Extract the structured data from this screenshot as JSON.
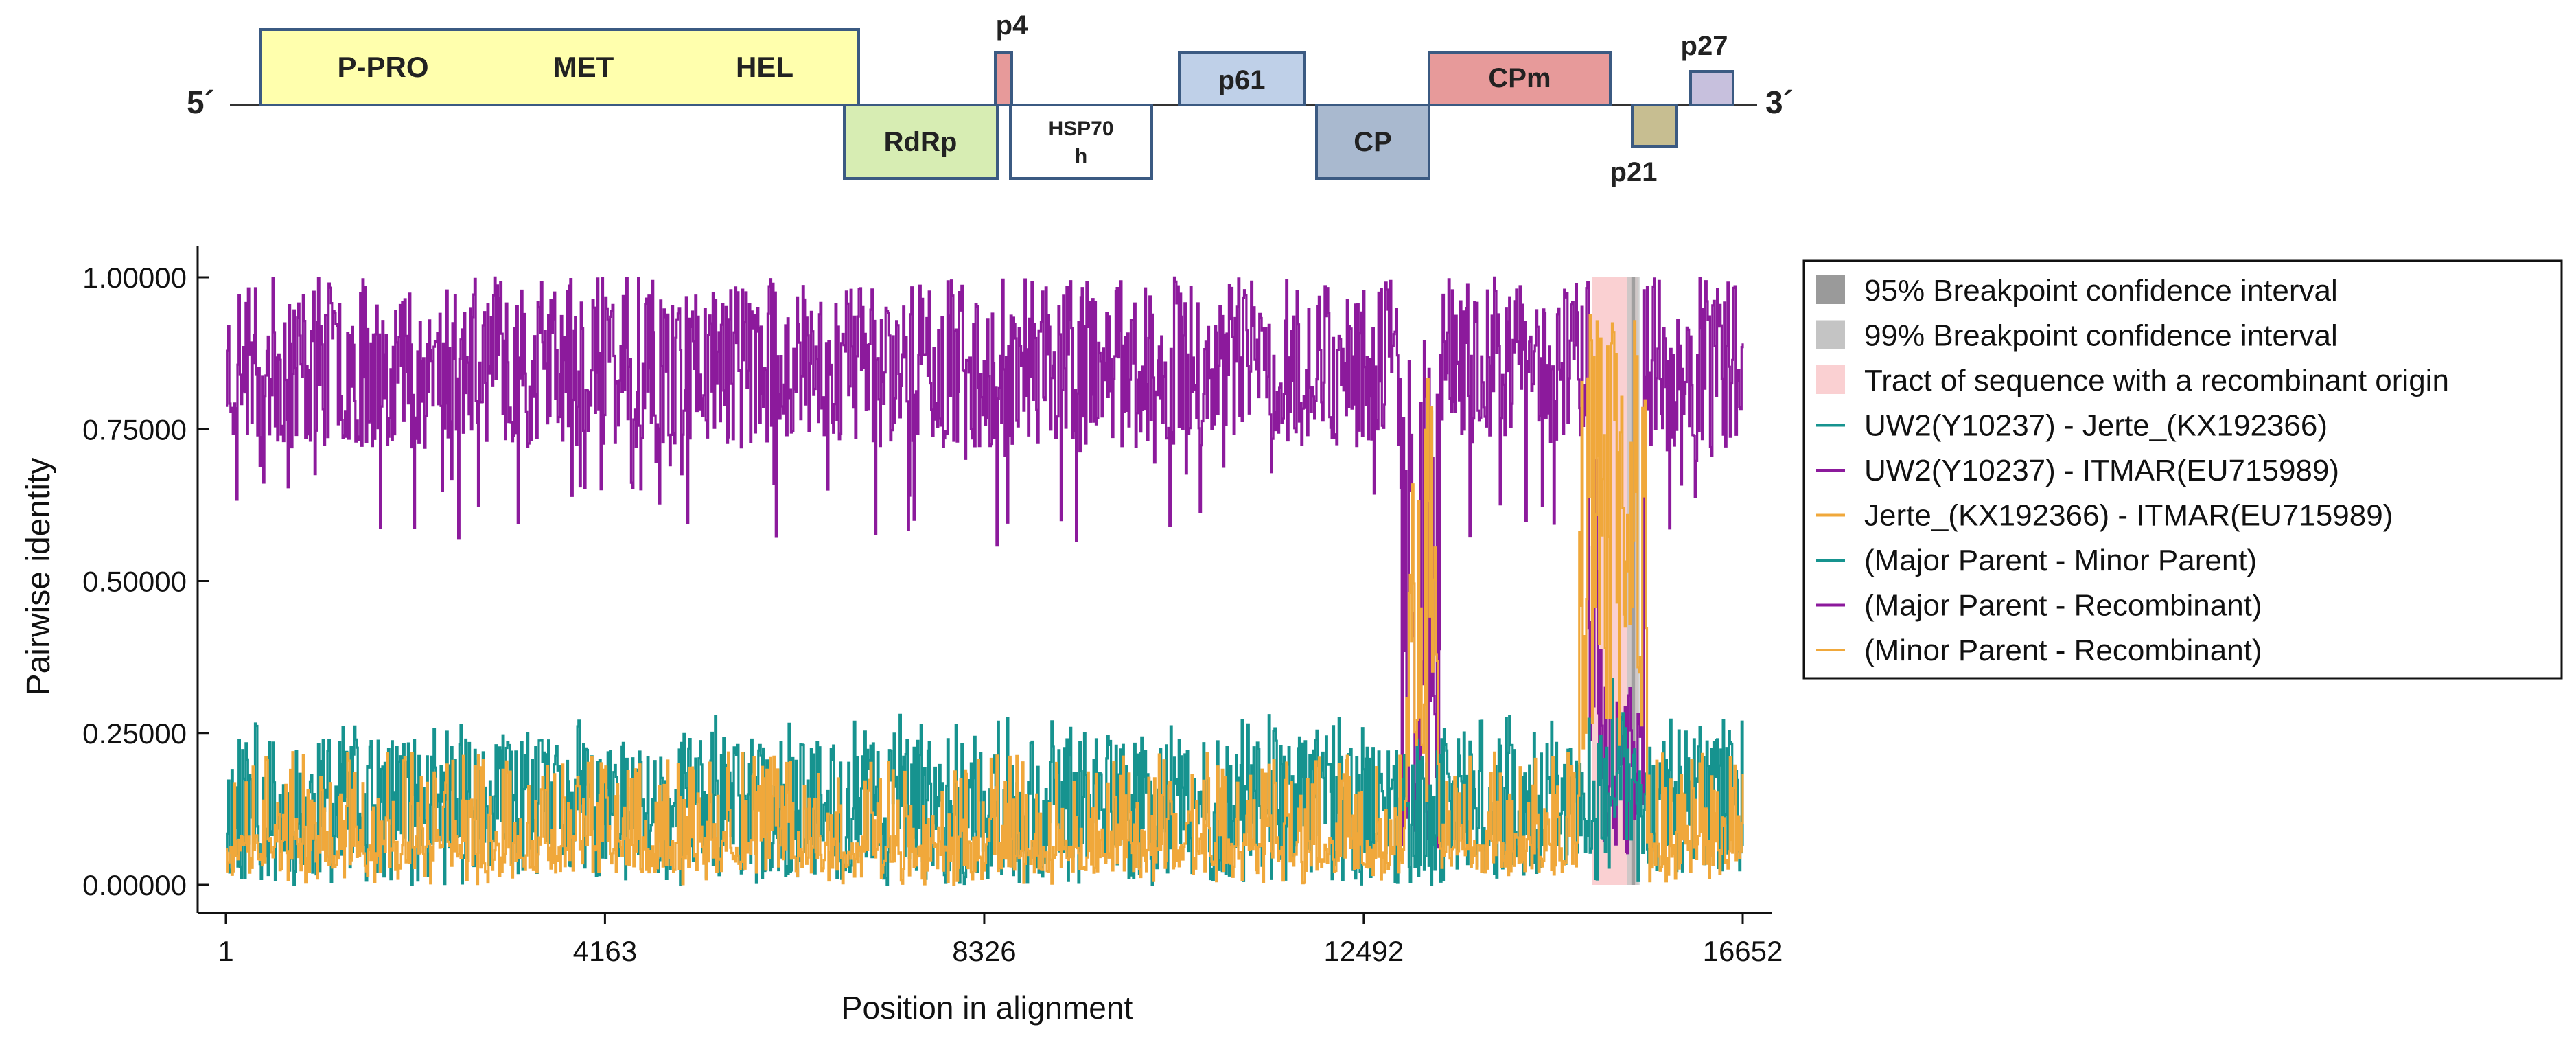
{
  "genome_map": {
    "five_prime_label": "5´",
    "three_prime_label": "3´",
    "genes": [
      {
        "id": "polyprotein",
        "labels": [
          "P-PRO",
          "MET",
          "HEL"
        ],
        "fill": "#FFFFAD"
      },
      {
        "id": "rdrp",
        "labels": [
          "RdRp"
        ],
        "fill": "#D7EDB3"
      },
      {
        "id": "p4",
        "labels": [
          "p4"
        ],
        "fill": "#E79A9A"
      },
      {
        "id": "hsp70h",
        "labels": [
          "HSP70",
          "h"
        ],
        "fill": "#FFFFFF"
      },
      {
        "id": "p61",
        "labels": [
          "p61"
        ],
        "fill": "#BFD0E8"
      },
      {
        "id": "cp",
        "labels": [
          "CP"
        ],
        "fill": "#A9B9CF"
      },
      {
        "id": "cpm",
        "labels": [
          "CPm"
        ],
        "fill": "#E79A9A"
      },
      {
        "id": "p21",
        "labels": [
          "p21"
        ],
        "fill": "#C7BE91"
      },
      {
        "id": "p27",
        "labels": [
          "p27"
        ],
        "fill": "#C7C0DD"
      }
    ],
    "outline_color": "#3B5A82"
  },
  "chart_data": {
    "type": "line",
    "title": "",
    "xlabel": "Position in alignment",
    "ylabel": "Pairwise identity",
    "xlim": [
      1,
      16652
    ],
    "ylim": [
      0,
      1
    ],
    "xticks": [
      1,
      4163,
      8326,
      12492,
      16652
    ],
    "yticks": [
      0.0,
      0.25,
      0.5,
      0.75,
      1.0
    ],
    "ytick_labels": [
      "0.00000",
      "0.25000",
      "0.50000",
      "0.75000",
      "1.00000"
    ],
    "shaded_regions": {
      "recombinant_tract": [
        15000,
        15500
      ],
      "ci99": [
        15380,
        15520
      ],
      "ci95": [
        15430,
        15470
      ]
    },
    "series": [
      {
        "name": "UW2(Y10237) - Jerte_(KX192366)",
        "color": "#16938F",
        "profile": "low-teal",
        "seed": 11,
        "amp": 0.28
      },
      {
        "name": "UW2(Y10237) - ITMAR(EU715989)",
        "color": "#8C1A9C",
        "profile": "high-purple",
        "seed": 23,
        "amp": 1.0
      },
      {
        "name": "Jerte_(KX192366) - ITMAR(EU715989)",
        "color": "#F0A83B",
        "profile": "low-orange",
        "seed": 37,
        "amp": 0.28
      }
    ],
    "legend": {
      "placement": "right",
      "entries": [
        {
          "label": "95% Breakpoint confidence interval",
          "kind": "box",
          "color": "#9A9A9A"
        },
        {
          "label": "99% Breakpoint confidence interval",
          "kind": "box",
          "color": "#C4C4C4"
        },
        {
          "label": "Tract of sequence with a recombinant origin",
          "kind": "box",
          "color": "#FAD0D2"
        },
        {
          "label": "UW2(Y10237) - Jerte_(KX192366)",
          "kind": "line",
          "color": "#16938F"
        },
        {
          "label": "UW2(Y10237) - ITMAR(EU715989)",
          "kind": "line",
          "color": "#8C1A9C"
        },
        {
          "label": "Jerte_(KX192366) - ITMAR(EU715989)",
          "kind": "line",
          "color": "#F0A83B"
        },
        {
          "label": "(Major Parent - Minor Parent)",
          "kind": "line",
          "color": "#16938F"
        },
        {
          "label": "(Major Parent - Recombinant)",
          "kind": "line",
          "color": "#8C1A9C"
        },
        {
          "label": "(Minor Parent - Recombinant)",
          "kind": "line",
          "color": "#F0A83B"
        }
      ]
    }
  }
}
